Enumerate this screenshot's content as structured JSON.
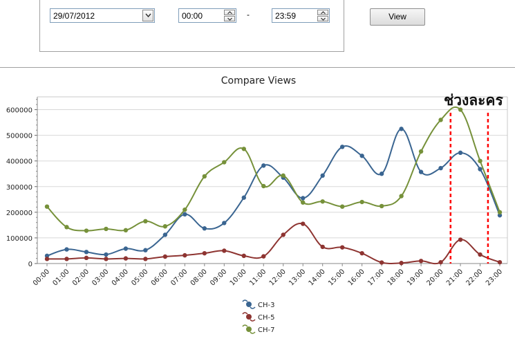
{
  "filters": {
    "date_value": "29/07/2012",
    "start_time": "00:00",
    "separator": "-",
    "end_time": "23:59",
    "view_label": "View"
  },
  "colors": {
    "ch3": "#3a6591",
    "ch5": "#8e3431",
    "ch7": "#76913a",
    "highlight_marker": "#ff0000",
    "gridline": "#d8d8d8"
  },
  "chart_data": {
    "type": "line",
    "title": "Compare Views",
    "xlabel": "",
    "ylabel": "",
    "categories": [
      "00:00",
      "01:00",
      "02:00",
      "03:00",
      "04:00",
      "05:00",
      "06:00",
      "07:00",
      "08:00",
      "09:00",
      "10:00",
      "11:00",
      "12:00",
      "13:00",
      "14:00",
      "15:00",
      "16:00",
      "17:00",
      "18:00",
      "19:00",
      "20:00",
      "21:00",
      "22:00",
      "23:00"
    ],
    "ylim": [
      0,
      650000
    ],
    "yticks": [
      0,
      100000,
      200000,
      300000,
      400000,
      500000,
      600000
    ],
    "ytick_labels": [
      "0",
      "100000",
      "200000",
      "300000",
      "400000",
      "500000",
      "600000"
    ],
    "grid": true,
    "legend_position": "bottom-center",
    "series": [
      {
        "name": "CH-3",
        "values": [
          30000,
          55000,
          45000,
          35000,
          58000,
          52000,
          112000,
          192000,
          137000,
          158000,
          257000,
          382000,
          335000,
          255000,
          343000,
          455000,
          420000,
          350000,
          525000,
          357000,
          372000,
          432000,
          368000,
          188000
        ]
      },
      {
        "name": "CH-5",
        "values": [
          18000,
          18000,
          22000,
          18000,
          20000,
          18000,
          27000,
          32000,
          40000,
          50000,
          30000,
          28000,
          112000,
          155000,
          65000,
          63000,
          40000,
          4000,
          2000,
          10000,
          5000,
          93000,
          35000,
          5000
        ]
      },
      {
        "name": "CH-7",
        "values": [
          222000,
          142000,
          128000,
          135000,
          130000,
          165000,
          145000,
          210000,
          340000,
          395000,
          447000,
          302000,
          343000,
          238000,
          242000,
          222000,
          240000,
          224000,
          263000,
          437000,
          560000,
          600000,
          400000,
          200000
        ]
      }
    ],
    "annotation": {
      "text": "ช่วงละคร",
      "from_category": "20:00",
      "to_category": "22:00",
      "from_offset": 0.5,
      "to_offset": 0.4
    }
  }
}
